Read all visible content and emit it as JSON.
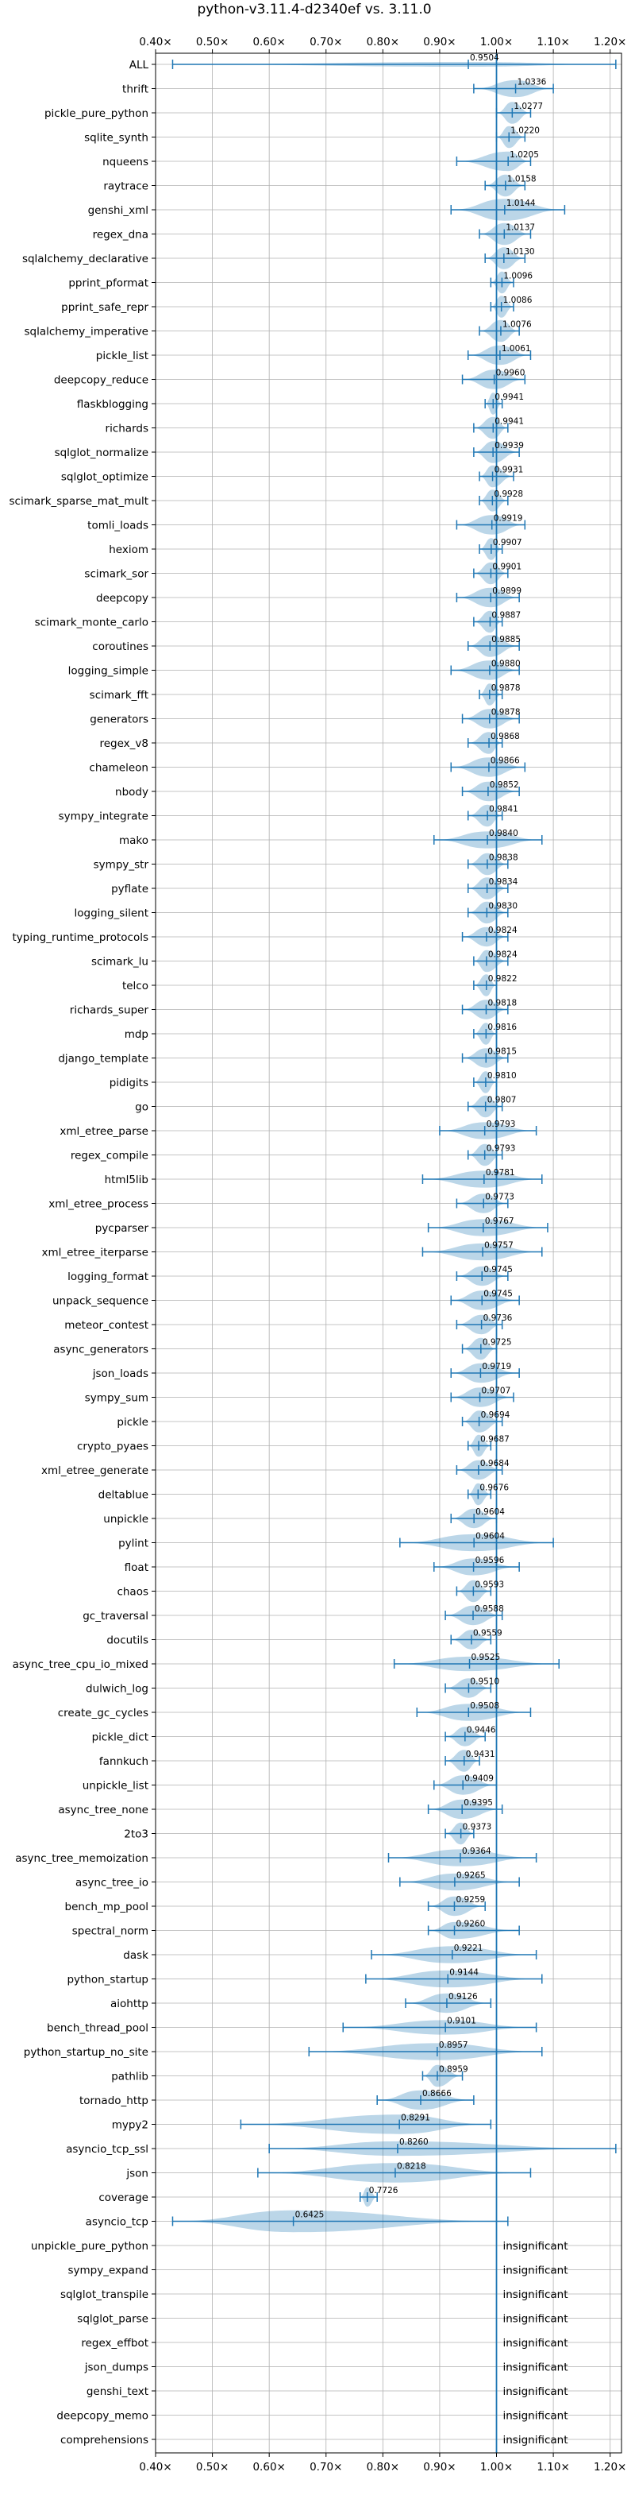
{
  "chart_data": {
    "type": "violin",
    "title": "python-v3.11.4-d2340ef vs. 3.11.0",
    "xlim": [
      0.4,
      1.22
    ],
    "xticks": [
      0.4,
      0.5,
      0.6,
      0.7,
      0.8,
      0.9,
      1.0,
      1.1,
      1.2
    ],
    "xtick_labels": [
      "0.40×",
      "0.50×",
      "0.60×",
      "0.70×",
      "0.80×",
      "0.90×",
      "1.00×",
      "1.10×",
      "1.20×"
    ],
    "grid": true,
    "reference_line": 1.0,
    "color": "#1f77b4",
    "insignificant_label": "insignificant",
    "benchmarks": [
      {
        "name": "ALL",
        "mean": 0.9504,
        "min": 0.43,
        "max": 1.21,
        "width": 0.1
      },
      {
        "name": "thrift",
        "mean": 1.0336,
        "min": 0.96,
        "max": 1.1,
        "width": 0.35
      },
      {
        "name": "pickle_pure_python",
        "mean": 1.0277,
        "min": 1.0,
        "max": 1.06,
        "width": 0.45
      },
      {
        "name": "sqlite_synth",
        "mean": 1.022,
        "min": 1.0,
        "max": 1.05,
        "width": 0.45
      },
      {
        "name": "nqueens",
        "mean": 1.0205,
        "min": 0.93,
        "max": 1.06,
        "width": 0.4
      },
      {
        "name": "raytrace",
        "mean": 1.0158,
        "min": 0.98,
        "max": 1.05,
        "width": 0.45
      },
      {
        "name": "genshi_xml",
        "mean": 1.0144,
        "min": 0.92,
        "max": 1.12,
        "width": 0.45
      },
      {
        "name": "regex_dna",
        "mean": 1.0137,
        "min": 0.97,
        "max": 1.06,
        "width": 0.45
      },
      {
        "name": "sqlalchemy_declarative",
        "mean": 1.013,
        "min": 0.98,
        "max": 1.05,
        "width": 0.45
      },
      {
        "name": "pprint_pformat",
        "mean": 1.0096,
        "min": 0.99,
        "max": 1.03,
        "width": 0.45
      },
      {
        "name": "pprint_safe_repr",
        "mean": 1.0086,
        "min": 0.99,
        "max": 1.03,
        "width": 0.45
      },
      {
        "name": "sqlalchemy_imperative",
        "mean": 1.0076,
        "min": 0.97,
        "max": 1.04,
        "width": 0.45
      },
      {
        "name": "pickle_list",
        "mean": 1.0061,
        "min": 0.95,
        "max": 1.06,
        "width": 0.4
      },
      {
        "name": "deepcopy_reduce",
        "mean": 0.996,
        "min": 0.94,
        "max": 1.05,
        "width": 0.4
      },
      {
        "name": "flaskblogging",
        "mean": 0.9941,
        "min": 0.98,
        "max": 1.01,
        "width": 0.45
      },
      {
        "name": "richards",
        "mean": 0.9941,
        "min": 0.96,
        "max": 1.02,
        "width": 0.45
      },
      {
        "name": "sqlglot_normalize",
        "mean": 0.9939,
        "min": 0.96,
        "max": 1.04,
        "width": 0.45
      },
      {
        "name": "sqlglot_optimize",
        "mean": 0.9931,
        "min": 0.97,
        "max": 1.03,
        "width": 0.45
      },
      {
        "name": "scimark_sparse_mat_mult",
        "mean": 0.9928,
        "min": 0.97,
        "max": 1.02,
        "width": 0.45
      },
      {
        "name": "tomli_loads",
        "mean": 0.9919,
        "min": 0.93,
        "max": 1.05,
        "width": 0.4
      },
      {
        "name": "hexiom",
        "mean": 0.9907,
        "min": 0.97,
        "max": 1.01,
        "width": 0.45
      },
      {
        "name": "scimark_sor",
        "mean": 0.9901,
        "min": 0.96,
        "max": 1.02,
        "width": 0.45
      },
      {
        "name": "deepcopy",
        "mean": 0.9899,
        "min": 0.93,
        "max": 1.04,
        "width": 0.4
      },
      {
        "name": "scimark_monte_carlo",
        "mean": 0.9887,
        "min": 0.96,
        "max": 1.01,
        "width": 0.45
      },
      {
        "name": "coroutines",
        "mean": 0.9885,
        "min": 0.95,
        "max": 1.04,
        "width": 0.45
      },
      {
        "name": "logging_simple",
        "mean": 0.988,
        "min": 0.92,
        "max": 1.04,
        "width": 0.4
      },
      {
        "name": "scimark_fft",
        "mean": 0.9878,
        "min": 0.97,
        "max": 1.01,
        "width": 0.45
      },
      {
        "name": "generators",
        "mean": 0.9878,
        "min": 0.94,
        "max": 1.04,
        "width": 0.4
      },
      {
        "name": "regex_v8",
        "mean": 0.9868,
        "min": 0.95,
        "max": 1.01,
        "width": 0.45
      },
      {
        "name": "chameleon",
        "mean": 0.9866,
        "min": 0.92,
        "max": 1.05,
        "width": 0.4
      },
      {
        "name": "nbody",
        "mean": 0.9852,
        "min": 0.94,
        "max": 1.04,
        "width": 0.4
      },
      {
        "name": "sympy_integrate",
        "mean": 0.9841,
        "min": 0.95,
        "max": 1.01,
        "width": 0.45
      },
      {
        "name": "mako",
        "mean": 0.984,
        "min": 0.89,
        "max": 1.08,
        "width": 0.35
      },
      {
        "name": "sympy_str",
        "mean": 0.9838,
        "min": 0.95,
        "max": 1.02,
        "width": 0.45
      },
      {
        "name": "pyflate",
        "mean": 0.9834,
        "min": 0.95,
        "max": 1.02,
        "width": 0.45
      },
      {
        "name": "logging_silent",
        "mean": 0.983,
        "min": 0.95,
        "max": 1.02,
        "width": 0.45
      },
      {
        "name": "typing_runtime_protocols",
        "mean": 0.9824,
        "min": 0.94,
        "max": 1.02,
        "width": 0.4
      },
      {
        "name": "scimark_lu",
        "mean": 0.9824,
        "min": 0.96,
        "max": 1.02,
        "width": 0.45
      },
      {
        "name": "telco",
        "mean": 0.9822,
        "min": 0.96,
        "max": 1.0,
        "width": 0.45
      },
      {
        "name": "richards_super",
        "mean": 0.9818,
        "min": 0.94,
        "max": 1.02,
        "width": 0.4
      },
      {
        "name": "mdp",
        "mean": 0.9816,
        "min": 0.96,
        "max": 1.0,
        "width": 0.45
      },
      {
        "name": "django_template",
        "mean": 0.9815,
        "min": 0.94,
        "max": 1.02,
        "width": 0.4
      },
      {
        "name": "pidigits",
        "mean": 0.981,
        "min": 0.96,
        "max": 1.0,
        "width": 0.45
      },
      {
        "name": "go",
        "mean": 0.9807,
        "min": 0.95,
        "max": 1.01,
        "width": 0.45
      },
      {
        "name": "xml_etree_parse",
        "mean": 0.9793,
        "min": 0.9,
        "max": 1.07,
        "width": 0.35
      },
      {
        "name": "regex_compile",
        "mean": 0.9793,
        "min": 0.95,
        "max": 1.01,
        "width": 0.45
      },
      {
        "name": "html5lib",
        "mean": 0.9781,
        "min": 0.87,
        "max": 1.08,
        "width": 0.35
      },
      {
        "name": "xml_etree_process",
        "mean": 0.9773,
        "min": 0.93,
        "max": 1.02,
        "width": 0.4
      },
      {
        "name": "pycparser",
        "mean": 0.9767,
        "min": 0.88,
        "max": 1.09,
        "width": 0.35
      },
      {
        "name": "xml_etree_iterparse",
        "mean": 0.9757,
        "min": 0.87,
        "max": 1.08,
        "width": 0.35
      },
      {
        "name": "logging_format",
        "mean": 0.9745,
        "min": 0.93,
        "max": 1.02,
        "width": 0.4
      },
      {
        "name": "unpack_sequence",
        "mean": 0.9745,
        "min": 0.92,
        "max": 1.04,
        "width": 0.4
      },
      {
        "name": "meteor_contest",
        "mean": 0.9736,
        "min": 0.93,
        "max": 1.01,
        "width": 0.4
      },
      {
        "name": "async_generators",
        "mean": 0.9725,
        "min": 0.94,
        "max": 1.0,
        "width": 0.45
      },
      {
        "name": "json_loads",
        "mean": 0.9719,
        "min": 0.92,
        "max": 1.04,
        "width": 0.4
      },
      {
        "name": "sympy_sum",
        "mean": 0.9707,
        "min": 0.92,
        "max": 1.03,
        "width": 0.4
      },
      {
        "name": "pickle",
        "mean": 0.9694,
        "min": 0.94,
        "max": 1.01,
        "width": 0.45
      },
      {
        "name": "crypto_pyaes",
        "mean": 0.9687,
        "min": 0.95,
        "max": 0.99,
        "width": 0.45
      },
      {
        "name": "xml_etree_generate",
        "mean": 0.9684,
        "min": 0.93,
        "max": 1.01,
        "width": 0.4
      },
      {
        "name": "deltablue",
        "mean": 0.9676,
        "min": 0.95,
        "max": 0.99,
        "width": 0.45
      },
      {
        "name": "unpickle",
        "mean": 0.9604,
        "min": 0.92,
        "max": 1.0,
        "width": 0.4
      },
      {
        "name": "pylint",
        "mean": 0.9604,
        "min": 0.83,
        "max": 1.1,
        "width": 0.35
      },
      {
        "name": "float",
        "mean": 0.9596,
        "min": 0.89,
        "max": 1.04,
        "width": 0.35
      },
      {
        "name": "chaos",
        "mean": 0.9593,
        "min": 0.93,
        "max": 0.99,
        "width": 0.45
      },
      {
        "name": "gc_traversal",
        "mean": 0.9588,
        "min": 0.91,
        "max": 1.01,
        "width": 0.4
      },
      {
        "name": "docutils",
        "mean": 0.9559,
        "min": 0.92,
        "max": 0.99,
        "width": 0.4
      },
      {
        "name": "async_tree_cpu_io_mixed",
        "mean": 0.9525,
        "min": 0.82,
        "max": 1.11,
        "width": 0.3
      },
      {
        "name": "dulwich_log",
        "mean": 0.951,
        "min": 0.91,
        "max": 0.99,
        "width": 0.4
      },
      {
        "name": "create_gc_cycles",
        "mean": 0.9508,
        "min": 0.86,
        "max": 1.06,
        "width": 0.35
      },
      {
        "name": "pickle_dict",
        "mean": 0.9446,
        "min": 0.91,
        "max": 0.98,
        "width": 0.4
      },
      {
        "name": "fannkuch",
        "mean": 0.9431,
        "min": 0.91,
        "max": 0.97,
        "width": 0.45
      },
      {
        "name": "unpickle_list",
        "mean": 0.9409,
        "min": 0.89,
        "max": 1.0,
        "width": 0.4
      },
      {
        "name": "async_tree_none",
        "mean": 0.9395,
        "min": 0.88,
        "max": 1.01,
        "width": 0.4
      },
      {
        "name": "2to3",
        "mean": 0.9373,
        "min": 0.91,
        "max": 0.96,
        "width": 0.45
      },
      {
        "name": "async_tree_memoization",
        "mean": 0.9364,
        "min": 0.81,
        "max": 1.07,
        "width": 0.35
      },
      {
        "name": "async_tree_io",
        "mean": 0.9265,
        "min": 0.83,
        "max": 1.04,
        "width": 0.35
      },
      {
        "name": "bench_mp_pool",
        "mean": 0.9259,
        "min": 0.88,
        "max": 0.98,
        "width": 0.4
      },
      {
        "name": "spectral_norm",
        "mean": 0.926,
        "min": 0.88,
        "max": 1.04,
        "width": 0.35
      },
      {
        "name": "dask",
        "mean": 0.9221,
        "min": 0.78,
        "max": 1.07,
        "width": 0.35
      },
      {
        "name": "python_startup",
        "mean": 0.9144,
        "min": 0.77,
        "max": 1.08,
        "width": 0.35
      },
      {
        "name": "aiohttp",
        "mean": 0.9126,
        "min": 0.84,
        "max": 0.99,
        "width": 0.4
      },
      {
        "name": "bench_thread_pool",
        "mean": 0.9101,
        "min": 0.73,
        "max": 1.07,
        "width": 0.3
      },
      {
        "name": "python_startup_no_site",
        "mean": 0.8957,
        "min": 0.67,
        "max": 1.08,
        "width": 0.35
      },
      {
        "name": "pathlib",
        "mean": 0.8959,
        "min": 0.87,
        "max": 0.94,
        "width": 0.45
      },
      {
        "name": "tornado_http",
        "mean": 0.8666,
        "min": 0.79,
        "max": 0.96,
        "width": 0.4
      },
      {
        "name": "mypy2",
        "mean": 0.8291,
        "min": 0.55,
        "max": 0.99,
        "width": 0.4
      },
      {
        "name": "asyncio_tcp_ssl",
        "mean": 0.826,
        "min": 0.6,
        "max": 1.21,
        "width": 0.3
      },
      {
        "name": "json",
        "mean": 0.8218,
        "min": 0.58,
        "max": 1.06,
        "width": 0.4
      },
      {
        "name": "coverage",
        "mean": 0.7726,
        "min": 0.76,
        "max": 0.79,
        "width": 0.4
      },
      {
        "name": "asyncio_tcp",
        "mean": 0.6425,
        "min": 0.43,
        "max": 1.02,
        "width": 0.45
      }
    ],
    "insignificant": [
      "unpickle_pure_python",
      "sympy_expand",
      "sqlglot_transpile",
      "sqlglot_parse",
      "regex_effbot",
      "json_dumps",
      "genshi_text",
      "deepcopy_memo",
      "comprehensions"
    ]
  }
}
